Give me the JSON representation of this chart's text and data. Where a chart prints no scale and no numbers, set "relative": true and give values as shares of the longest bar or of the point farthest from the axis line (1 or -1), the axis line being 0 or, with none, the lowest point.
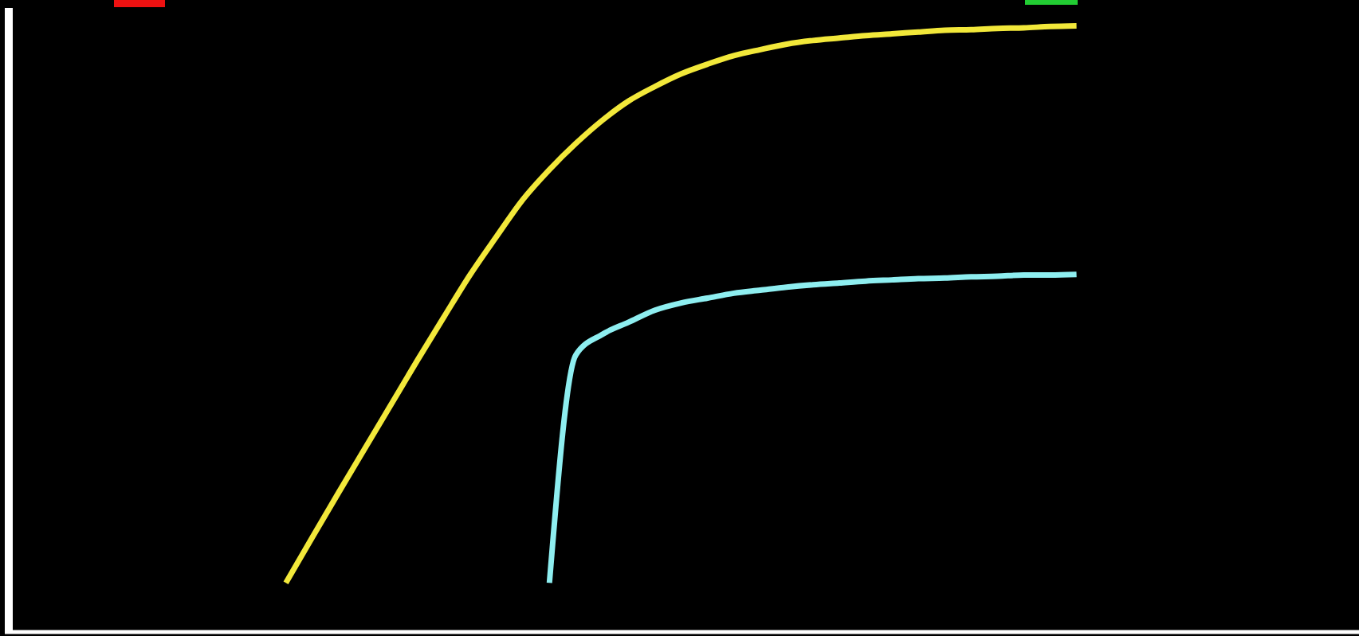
{
  "chart_data": {
    "type": "line",
    "relative": true,
    "categories": [
      null,
      null,
      null,
      null,
      null,
      null,
      null,
      null,
      null,
      null,
      null,
      null,
      null,
      null,
      null,
      null,
      null,
      null,
      null,
      null,
      null,
      null,
      null,
      null,
      null,
      null,
      null,
      null,
      null,
      null,
      null,
      null,
      null,
      null,
      null,
      null,
      null,
      null,
      null,
      null,
      null
    ],
    "series": [
      {
        "color": "#f2e83a",
        "values": [
          null,
          null,
          null,
          null,
          null,
          null,
          null,
          null,
          null,
          null,
          0.081,
          0.156,
          0.23,
          0.303,
          0.376,
          0.449,
          0.52,
          0.59,
          0.653,
          0.714,
          0.763,
          0.806,
          0.844,
          0.876,
          0.9,
          0.921,
          0.937,
          0.951,
          0.961,
          0.97,
          0.976,
          0.98,
          0.984,
          0.987,
          0.99,
          0.993,
          0.994,
          0.996,
          0.997,
          0.999,
          1
        ]
      },
      {
        "color": "#8eeef0",
        "values": [
          null,
          null,
          null,
          null,
          null,
          null,
          null,
          null,
          null,
          null,
          null,
          null,
          null,
          null,
          null,
          null,
          null,
          null,
          null,
          null,
          0.081,
          0.457,
          0.491,
          0.511,
          0.531,
          0.543,
          0.551,
          0.559,
          0.564,
          0.569,
          0.573,
          0.576,
          0.579,
          0.581,
          0.583,
          0.584,
          0.586,
          0.587,
          0.589,
          0.589,
          0.59
        ]
      }
    ]
  }
}
